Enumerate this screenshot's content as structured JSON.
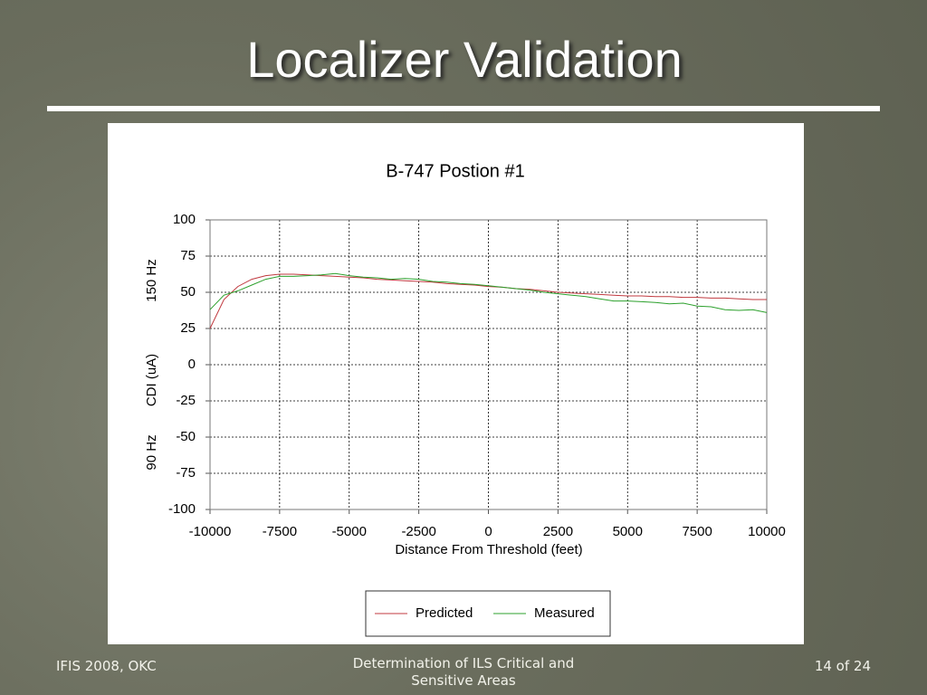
{
  "slide": {
    "title": "Localizer Validation",
    "footer_left": "IFIS 2008, OKC",
    "footer_center": "Determination of ILS Critical and Sensitive Areas",
    "footer_right": "14 of 24"
  },
  "chart_data": {
    "type": "line",
    "title": "B-747 Postion #1",
    "x_label": "Distance From Threshold (feet)",
    "y_label": "CDI (uA)",
    "annotations": [
      "150 Hz",
      "90 Hz"
    ],
    "x": [
      -10000,
      -9500,
      -9000,
      -8500,
      -8000,
      -7500,
      -7000,
      -6500,
      -6000,
      -5500,
      -5000,
      -4500,
      -4000,
      -3500,
      -3000,
      -2500,
      -2000,
      -1500,
      -1000,
      -500,
      0,
      500,
      1000,
      1500,
      2000,
      2500,
      3000,
      3500,
      4000,
      4500,
      5000,
      5500,
      6000,
      6500,
      7000,
      7500,
      8000,
      8500,
      9000,
      9500,
      10000
    ],
    "series": [
      {
        "name": "Predicted",
        "color": "#c0393f",
        "values": [
          25,
          45,
          54,
          59,
          61.5,
          62.5,
          62.5,
          62,
          61.5,
          61,
          60.5,
          60,
          59,
          58.5,
          58,
          57.5,
          57,
          56,
          55.5,
          55,
          54,
          53.5,
          52.5,
          52,
          51,
          50,
          49.5,
          49,
          48.5,
          48,
          47.5,
          47.5,
          47,
          47,
          46.5,
          46.5,
          46,
          46,
          45.5,
          45,
          45
        ]
      },
      {
        "name": "Measured",
        "color": "#2ca02c",
        "values": [
          38,
          48,
          51,
          55,
          59,
          61,
          61,
          61.5,
          62,
          63,
          61.5,
          60.5,
          60,
          59,
          59.5,
          59,
          57.5,
          57,
          56,
          55.5,
          54.5,
          53.5,
          52.5,
          51.5,
          50,
          49,
          48,
          47,
          45.5,
          44,
          44,
          43.5,
          43,
          42,
          42.5,
          40.5,
          40,
          38,
          37.5,
          38,
          36
        ]
      }
    ],
    "xlim": [
      -10000,
      10000
    ],
    "xticks": [
      -10000,
      -7500,
      -5000,
      -2500,
      0,
      2500,
      5000,
      7500,
      10000
    ],
    "ylim": [
      -100,
      100
    ],
    "yticks": [
      -100,
      -75,
      -50,
      -25,
      0,
      25,
      50,
      75,
      100
    ],
    "grid": true,
    "legend": "bottom"
  }
}
